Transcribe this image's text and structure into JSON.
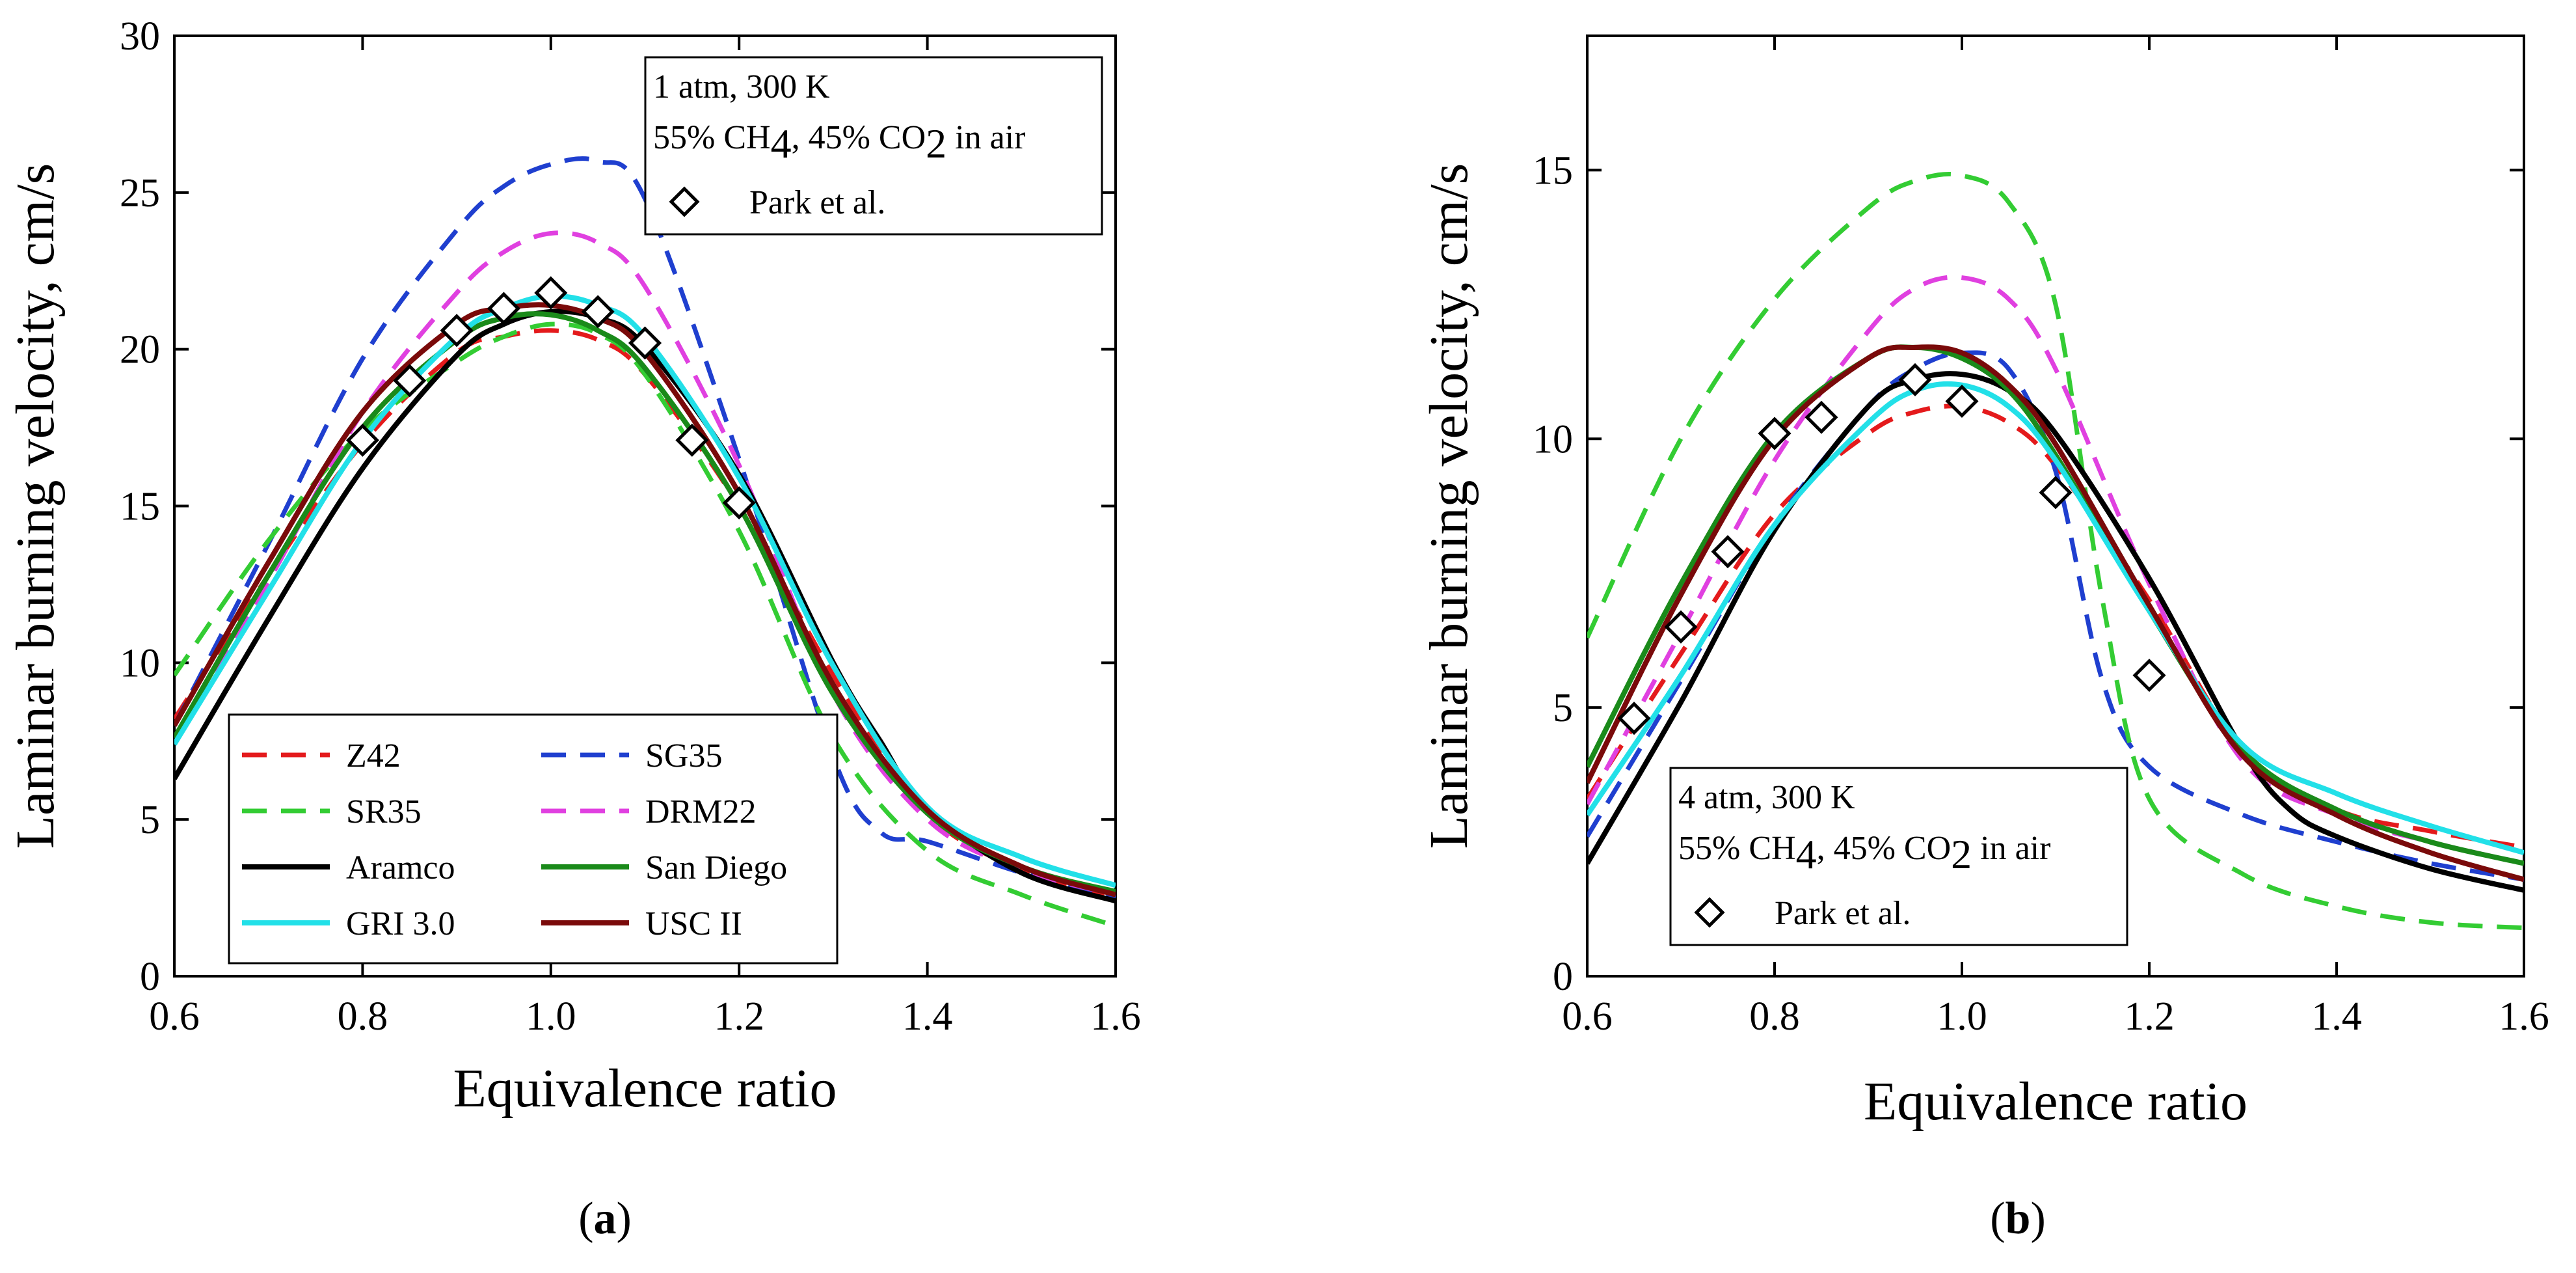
{
  "chart_data": [
    {
      "type": "line",
      "panel_label": "a",
      "xlabel": "Equivalence ratio",
      "ylabel": "Laminar burning velocity, cm/s",
      "xlim": [
        0.6,
        1.6
      ],
      "ylim": [
        0,
        30
      ],
      "xticks": [
        "0.6",
        "0.8",
        "1.0",
        "1.2",
        "1.4",
        "1.6"
      ],
      "yticks": [
        "0",
        "5",
        "10",
        "15",
        "20",
        "25",
        "30"
      ],
      "annotation": {
        "line1": "1 atm, 300 K",
        "line2_parts": [
          "55% CH",
          "4",
          ", 45% CO",
          "2",
          " in air"
        ],
        "marker_label": "Park et al."
      },
      "legend_position": "bottom-left",
      "series": [
        {
          "name": "Z42",
          "color": "#e41a1c",
          "dash": true,
          "x": [
            0.6,
            0.7,
            0.8,
            0.9,
            0.95,
            1.0,
            1.05,
            1.1,
            1.2,
            1.3,
            1.4,
            1.5,
            1.6
          ],
          "y": [
            8.2,
            12.8,
            17.0,
            19.9,
            20.4,
            20.6,
            20.3,
            19.2,
            15.0,
            9.6,
            5.2,
            3.4,
            2.5
          ]
        },
        {
          "name": "SG35",
          "color": "#1f3fcf",
          "dash": true,
          "x": [
            0.6,
            0.7,
            0.8,
            0.9,
            0.95,
            1.0,
            1.05,
            1.1,
            1.2,
            1.3,
            1.35,
            1.4,
            1.5,
            1.6
          ],
          "y": [
            8.0,
            13.8,
            19.7,
            23.8,
            25.2,
            25.9,
            26.0,
            24.8,
            16.5,
            7.0,
            4.6,
            4.3,
            3.3,
            2.5
          ]
        },
        {
          "name": "SR35",
          "color": "#33cc33",
          "dash": true,
          "x": [
            0.6,
            0.7,
            0.8,
            0.9,
            0.95,
            1.0,
            1.05,
            1.1,
            1.2,
            1.3,
            1.4,
            1.5,
            1.6
          ],
          "y": [
            9.6,
            13.9,
            17.4,
            19.6,
            20.4,
            20.8,
            20.5,
            19.2,
            14.2,
            7.6,
            4.0,
            2.6,
            1.6
          ]
        },
        {
          "name": "DRM22",
          "color": "#e040e0",
          "dash": true,
          "x": [
            0.6,
            0.7,
            0.8,
            0.9,
            0.95,
            1.0,
            1.05,
            1.1,
            1.2,
            1.3,
            1.4,
            1.5,
            1.6
          ],
          "y": [
            7.6,
            12.6,
            18.0,
            21.8,
            23.1,
            23.7,
            23.4,
            22.0,
            16.3,
            9.0,
            5.0,
            3.4,
            2.6
          ]
        },
        {
          "name": "Aramco",
          "color": "#000000",
          "dash": false,
          "x": [
            0.6,
            0.7,
            0.8,
            0.9,
            0.95,
            1.0,
            1.05,
            1.1,
            1.2,
            1.3,
            1.35,
            1.4,
            1.5,
            1.6
          ],
          "y": [
            6.3,
            11.4,
            16.2,
            19.8,
            20.8,
            21.2,
            21.0,
            20.1,
            16.0,
            10.0,
            7.5,
            5.3,
            3.3,
            2.4
          ]
        },
        {
          "name": "San Diego",
          "color": "#1a8a1a",
          "dash": false,
          "x": [
            0.6,
            0.7,
            0.8,
            0.9,
            0.95,
            1.0,
            1.05,
            1.1,
            1.2,
            1.3,
            1.4,
            1.5,
            1.6
          ],
          "y": [
            7.6,
            12.8,
            17.5,
            20.3,
            21.0,
            21.1,
            20.6,
            19.4,
            15.0,
            9.0,
            5.2,
            3.5,
            2.7
          ]
        },
        {
          "name": "GRI 3.0",
          "color": "#22e0e8",
          "dash": false,
          "x": [
            0.6,
            0.7,
            0.8,
            0.9,
            0.95,
            1.0,
            1.05,
            1.1,
            1.2,
            1.3,
            1.4,
            1.5,
            1.6
          ],
          "y": [
            7.4,
            12.3,
            17.1,
            20.4,
            21.3,
            21.7,
            21.4,
            20.4,
            15.9,
            9.9,
            5.4,
            3.8,
            2.9
          ]
        },
        {
          "name": "USC II",
          "color": "#7a0a0a",
          "dash": false,
          "x": [
            0.6,
            0.7,
            0.8,
            0.9,
            0.95,
            1.0,
            1.05,
            1.1,
            1.2,
            1.3,
            1.4,
            1.5,
            1.6
          ],
          "y": [
            8.0,
            13.2,
            18.0,
            20.8,
            21.3,
            21.4,
            21.0,
            19.9,
            15.4,
            9.3,
            5.3,
            3.5,
            2.6
          ]
        }
      ],
      "experimental": {
        "name": "Park et al.",
        "x": [
          0.8,
          0.85,
          0.9,
          0.95,
          1.0,
          1.05,
          1.1,
          1.15,
          1.2
        ],
        "y": [
          17.1,
          19.0,
          20.6,
          21.3,
          21.8,
          21.2,
          20.2,
          17.1,
          15.1
        ]
      }
    },
    {
      "type": "line",
      "panel_label": "b",
      "xlabel": "Equivalence ratio",
      "ylabel": "Laminar burning velocity, cm/s",
      "xlim": [
        0.6,
        1.6
      ],
      "ylim": [
        0,
        17.5
      ],
      "xticks": [
        "0.6",
        "0.8",
        "1.0",
        "1.2",
        "1.4",
        "1.6"
      ],
      "yticks": [
        "0",
        "5",
        "10",
        "15"
      ],
      "annotation": {
        "line1": "4 atm, 300 K",
        "line2_parts": [
          "55% CH",
          "4",
          ", 45% CO",
          "2",
          " in air"
        ],
        "marker_label": "Park et al."
      },
      "series": [
        {
          "name": "Z42",
          "color": "#e41a1c",
          "dash": true,
          "x": [
            0.6,
            0.7,
            0.8,
            0.9,
            0.95,
            1.0,
            1.05,
            1.1,
            1.2,
            1.3,
            1.4,
            1.5,
            1.6
          ],
          "y": [
            3.3,
            6.0,
            8.6,
            10.1,
            10.5,
            10.6,
            10.3,
            9.5,
            7.0,
            4.2,
            3.1,
            2.7,
            2.4
          ]
        },
        {
          "name": "SG35",
          "color": "#1f3fcf",
          "dash": true,
          "x": [
            0.6,
            0.7,
            0.8,
            0.9,
            0.95,
            1.0,
            1.05,
            1.1,
            1.15,
            1.2,
            1.3,
            1.4,
            1.5,
            1.6
          ],
          "y": [
            2.6,
            5.5,
            8.4,
            10.6,
            11.3,
            11.6,
            11.3,
            9.4,
            5.5,
            3.9,
            3.0,
            2.5,
            2.1,
            1.8
          ]
        },
        {
          "name": "SR35",
          "color": "#33cc33",
          "dash": true,
          "x": [
            0.6,
            0.7,
            0.8,
            0.9,
            0.95,
            1.0,
            1.05,
            1.1,
            1.15,
            1.2,
            1.3,
            1.4,
            1.5,
            1.6
          ],
          "y": [
            6.3,
            10.0,
            12.6,
            14.3,
            14.8,
            14.9,
            14.4,
            12.5,
            7.0,
            3.3,
            1.9,
            1.3,
            1.0,
            0.9
          ]
        },
        {
          "name": "DRM22",
          "color": "#e040e0",
          "dash": true,
          "x": [
            0.6,
            0.7,
            0.8,
            0.9,
            0.95,
            1.0,
            1.05,
            1.1,
            1.2,
            1.3,
            1.4,
            1.5,
            1.6
          ],
          "y": [
            3.2,
            6.4,
            9.6,
            12.0,
            12.8,
            13.0,
            12.6,
            11.3,
            7.3,
            4.0,
            3.0,
            2.5,
            2.1
          ]
        },
        {
          "name": "Aramco",
          "color": "#000000",
          "dash": false,
          "x": [
            0.6,
            0.7,
            0.8,
            0.9,
            0.95,
            1.0,
            1.05,
            1.1,
            1.2,
            1.3,
            1.35,
            1.4,
            1.5,
            1.6
          ],
          "y": [
            2.1,
            5.1,
            8.3,
            10.6,
            11.1,
            11.2,
            10.9,
            10.1,
            7.4,
            4.2,
            3.1,
            2.6,
            2.0,
            1.6
          ]
        },
        {
          "name": "San Diego",
          "color": "#1a8a1a",
          "dash": false,
          "x": [
            0.6,
            0.7,
            0.8,
            0.9,
            0.95,
            1.0,
            1.05,
            1.1,
            1.2,
            1.3,
            1.4,
            1.5,
            1.6
          ],
          "y": [
            3.9,
            7.3,
            10.1,
            11.5,
            11.7,
            11.5,
            10.9,
            9.7,
            6.8,
            4.2,
            3.1,
            2.5,
            2.1
          ]
        },
        {
          "name": "GRI 3.0",
          "color": "#22e0e8",
          "dash": false,
          "x": [
            0.6,
            0.7,
            0.8,
            0.9,
            0.95,
            1.0,
            1.05,
            1.1,
            1.2,
            1.3,
            1.4,
            1.5,
            1.6
          ],
          "y": [
            3.0,
            5.6,
            8.4,
            10.3,
            10.9,
            11.0,
            10.6,
            9.6,
            6.8,
            4.3,
            3.4,
            2.8,
            2.3
          ]
        },
        {
          "name": "USC II",
          "color": "#7a0a0a",
          "dash": false,
          "x": [
            0.6,
            0.7,
            0.8,
            0.9,
            0.95,
            1.0,
            1.05,
            1.1,
            1.2,
            1.3,
            1.4,
            1.5,
            1.6
          ],
          "y": [
            3.6,
            7.1,
            10.0,
            11.5,
            11.7,
            11.6,
            11.0,
            9.9,
            6.9,
            4.1,
            3.0,
            2.3,
            1.8
          ]
        }
      ],
      "experimental": {
        "name": "Park et al.",
        "x": [
          0.65,
          0.7,
          0.75,
          0.8,
          0.85,
          0.95,
          1.0,
          1.1,
          1.2
        ],
        "y": [
          4.8,
          6.5,
          7.9,
          10.1,
          10.4,
          11.1,
          10.7,
          9.0,
          5.6
        ]
      }
    }
  ]
}
